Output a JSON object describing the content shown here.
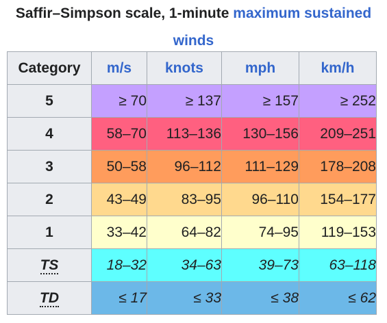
{
  "caption": {
    "part1": "Saffir–Simpson scale, 1-minute ",
    "link": "maximum sustained winds"
  },
  "headers": {
    "category": "Category",
    "ms": "m/s",
    "knots": "knots",
    "mph": "mph",
    "kmh": "km/h"
  },
  "rows": [
    {
      "category": "5",
      "ms": "≥ 70",
      "knots": "≥ 137",
      "mph": "≥ 157",
      "kmh": "≥ 252",
      "color": "#c4a0ff"
    },
    {
      "category": "4",
      "ms": "58–70",
      "knots": "113–136",
      "mph": "130–156",
      "kmh": "209–251",
      "color": "#ff6080"
    },
    {
      "category": "3",
      "ms": "50–58",
      "knots": "96–112",
      "mph": "111–129",
      "kmh": "178–208",
      "color": "#ff9c5c"
    },
    {
      "category": "2",
      "ms": "43–49",
      "knots": "83–95",
      "mph": "96–110",
      "kmh": "154–177",
      "color": "#ffd98e"
    },
    {
      "category": "1",
      "ms": "33–42",
      "knots": "64–82",
      "mph": "74–95",
      "kmh": "119–153",
      "color": "#ffffcc"
    },
    {
      "category": "TS",
      "ms": "18–32",
      "knots": "34–63",
      "mph": "39–73",
      "kmh": "63–118",
      "color": "#5effff"
    },
    {
      "category": "TD",
      "ms": "≤ 17",
      "knots": "≤ 33",
      "mph": "≤ 38",
      "kmh": "≤ 62",
      "color": "#6cb8e8"
    }
  ]
}
